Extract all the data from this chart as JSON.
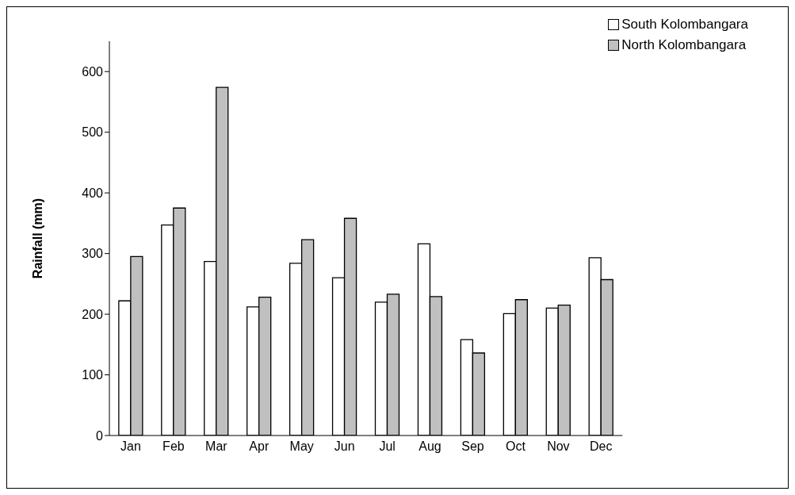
{
  "chart_data": {
    "type": "bar",
    "ylabel": "Rainfall (mm)",
    "categories": [
      "Jan",
      "Feb",
      "Mar",
      "Apr",
      "May",
      "Jun",
      "Jul",
      "Aug",
      "Sep",
      "Oct",
      "Nov",
      "Dec"
    ],
    "series": [
      {
        "name": "South Kolombangara",
        "color": "#ffffff",
        "values": [
          222,
          347,
          287,
          212,
          284,
          260,
          220,
          316,
          158,
          201,
          210,
          293
        ]
      },
      {
        "name": "North Kolombangara",
        "color": "#c0c0c0",
        "values": [
          295,
          375,
          574,
          228,
          323,
          358,
          233,
          229,
          136,
          224,
          215,
          257
        ]
      }
    ],
    "ylim": [
      0,
      650
    ],
    "yticks": [
      0,
      100,
      200,
      300,
      400,
      500,
      600
    ],
    "grid": false,
    "legend": "top right"
  }
}
